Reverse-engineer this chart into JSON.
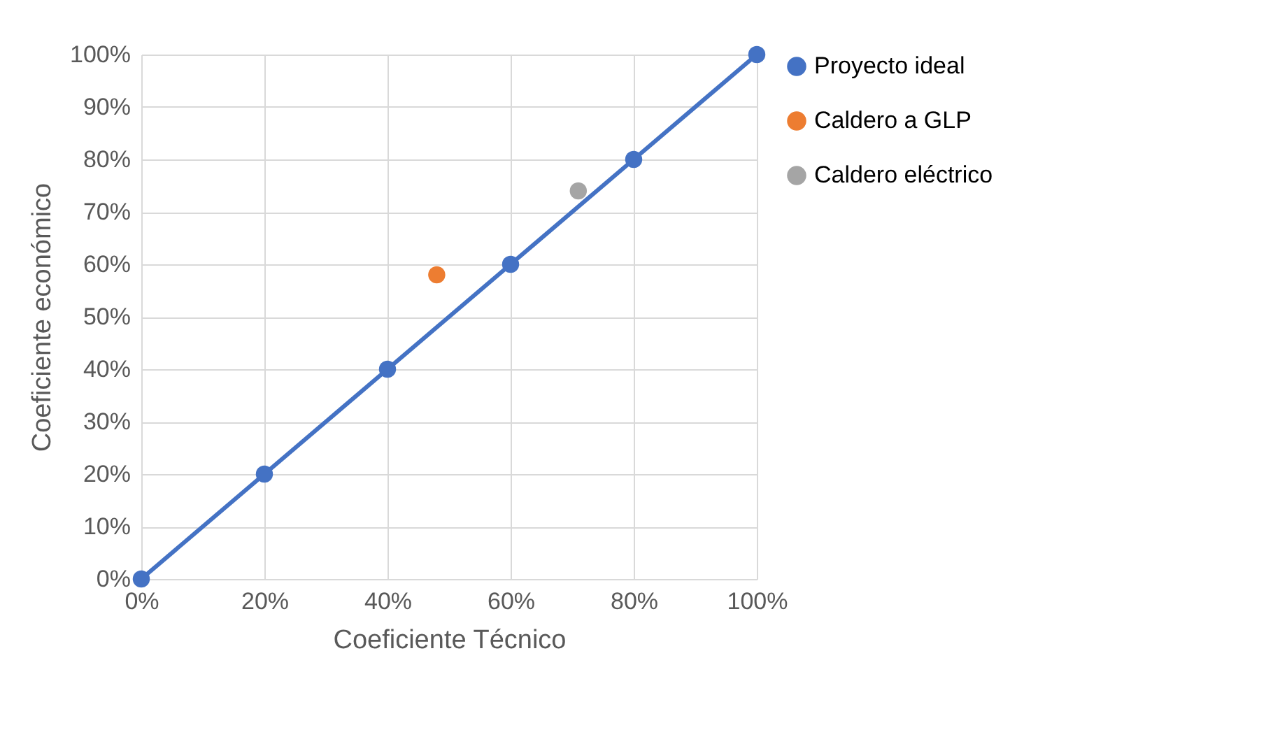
{
  "chart_data": {
    "type": "line",
    "xlabel": "Coeficiente Técnico",
    "ylabel": "Coeficiente económico",
    "xlim": [
      0,
      100
    ],
    "ylim": [
      0,
      100
    ],
    "xticks": [
      {
        "value": 0,
        "label": "0%"
      },
      {
        "value": 20,
        "label": "20%"
      },
      {
        "value": 40,
        "label": "40%"
      },
      {
        "value": 60,
        "label": "60%"
      },
      {
        "value": 80,
        "label": "80%"
      },
      {
        "value": 100,
        "label": "100%"
      }
    ],
    "yticks": [
      {
        "value": 0,
        "label": "0%"
      },
      {
        "value": 10,
        "label": "10%"
      },
      {
        "value": 20,
        "label": "20%"
      },
      {
        "value": 30,
        "label": "30%"
      },
      {
        "value": 40,
        "label": "40%"
      },
      {
        "value": 50,
        "label": "50%"
      },
      {
        "value": 60,
        "label": "60%"
      },
      {
        "value": 70,
        "label": "70%"
      },
      {
        "value": 80,
        "label": "80%"
      },
      {
        "value": 90,
        "label": "90%"
      },
      {
        "value": 100,
        "label": "100%"
      }
    ],
    "grid": true,
    "legend": "right",
    "marker": "circle",
    "line_style": "solid",
    "series": [
      {
        "name": "Proyecto ideal",
        "color": "#4472c4",
        "x": [
          0,
          20,
          40,
          60,
          80,
          100
        ],
        "values": [
          0,
          20,
          40,
          60,
          80,
          100
        ]
      },
      {
        "name": "Caldero a GLP",
        "color": "#ed7d31",
        "x": [
          48
        ],
        "values": [
          58
        ]
      },
      {
        "name": "Caldero eléctrico",
        "color": "#a5a5a5",
        "x": [
          71
        ],
        "values": [
          74
        ]
      }
    ]
  }
}
